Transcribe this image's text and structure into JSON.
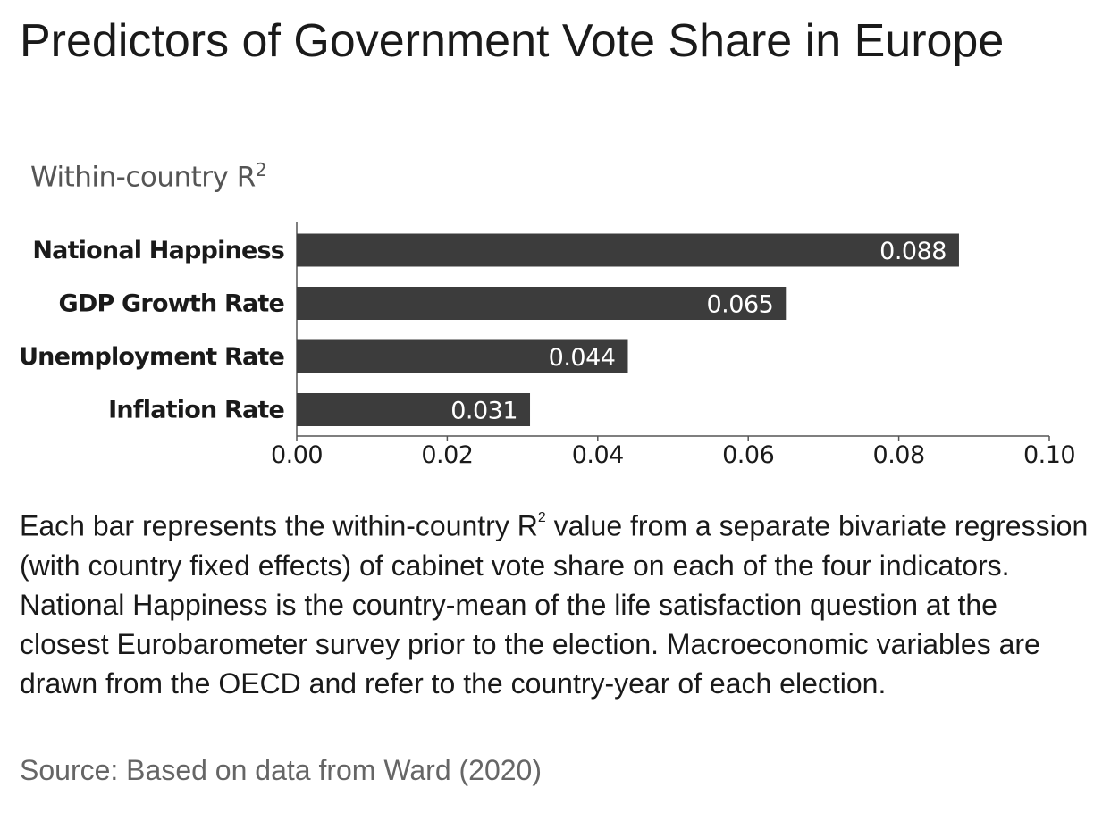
{
  "header": {
    "title": "Predictors of Government Vote Share in Europe",
    "subtitle": "Within-country R",
    "subtitle_sup": "2"
  },
  "caption": {
    "part1": "Each bar represents the within-country R",
    "sup": "2",
    "part2": " value from a separate bivariate regression (with country fixed effects) of cabinet vote share on each of the four indicators. National Happiness is the country-mean of the life satisfaction question at the closest Eurobarometer survey prior to the election. Macroeconomic variables are drawn from the OECD and refer to the country-year of each election."
  },
  "source": "Source: Based on data from Ward (2020)",
  "chart_data": {
    "type": "bar",
    "orientation": "horizontal",
    "categories": [
      "National Happiness",
      "GDP Growth Rate",
      "Unemployment Rate",
      "Inflation Rate"
    ],
    "values": [
      0.088,
      0.065,
      0.044,
      0.031
    ],
    "value_labels": [
      "0.088",
      "0.065",
      "0.044",
      "0.031"
    ],
    "xlim": [
      0,
      0.1
    ],
    "xticks": [
      0,
      0.02,
      0.04,
      0.06,
      0.08,
      0.1
    ],
    "xtick_labels": [
      "0.00",
      "0.02",
      "0.04",
      "0.06",
      "0.08",
      "0.10"
    ],
    "bar_color": "#3c3c3c",
    "label_color": "#ffffff",
    "grid": false
  }
}
